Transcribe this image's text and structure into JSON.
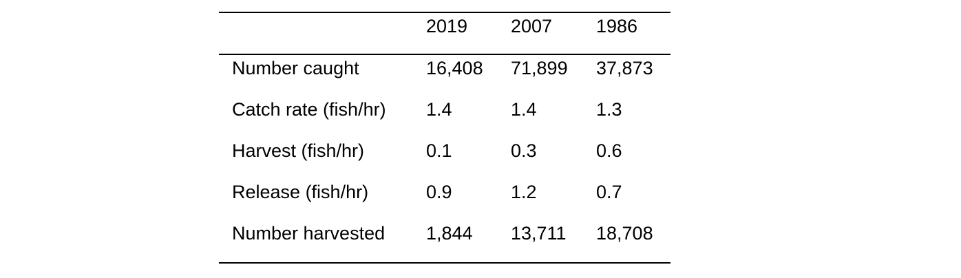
{
  "table": {
    "columns": [
      "2019",
      "2007",
      "1986"
    ],
    "rows": [
      {
        "label": "Number caught",
        "values": [
          "16,408",
          "71,899",
          "37,873"
        ]
      },
      {
        "label": "Catch rate (fish/hr)",
        "values": [
          "1.4",
          "1.4",
          "1.3"
        ]
      },
      {
        "label": "Harvest (fish/hr)",
        "values": [
          "0.1",
          "0.3",
          "0.6"
        ]
      },
      {
        "label": "Release (fish/hr)",
        "values": [
          "0.9",
          "1.2",
          "0.7"
        ]
      },
      {
        "label": "Number harvested",
        "values": [
          "1,844",
          "13,711",
          "18,708"
        ]
      }
    ]
  }
}
